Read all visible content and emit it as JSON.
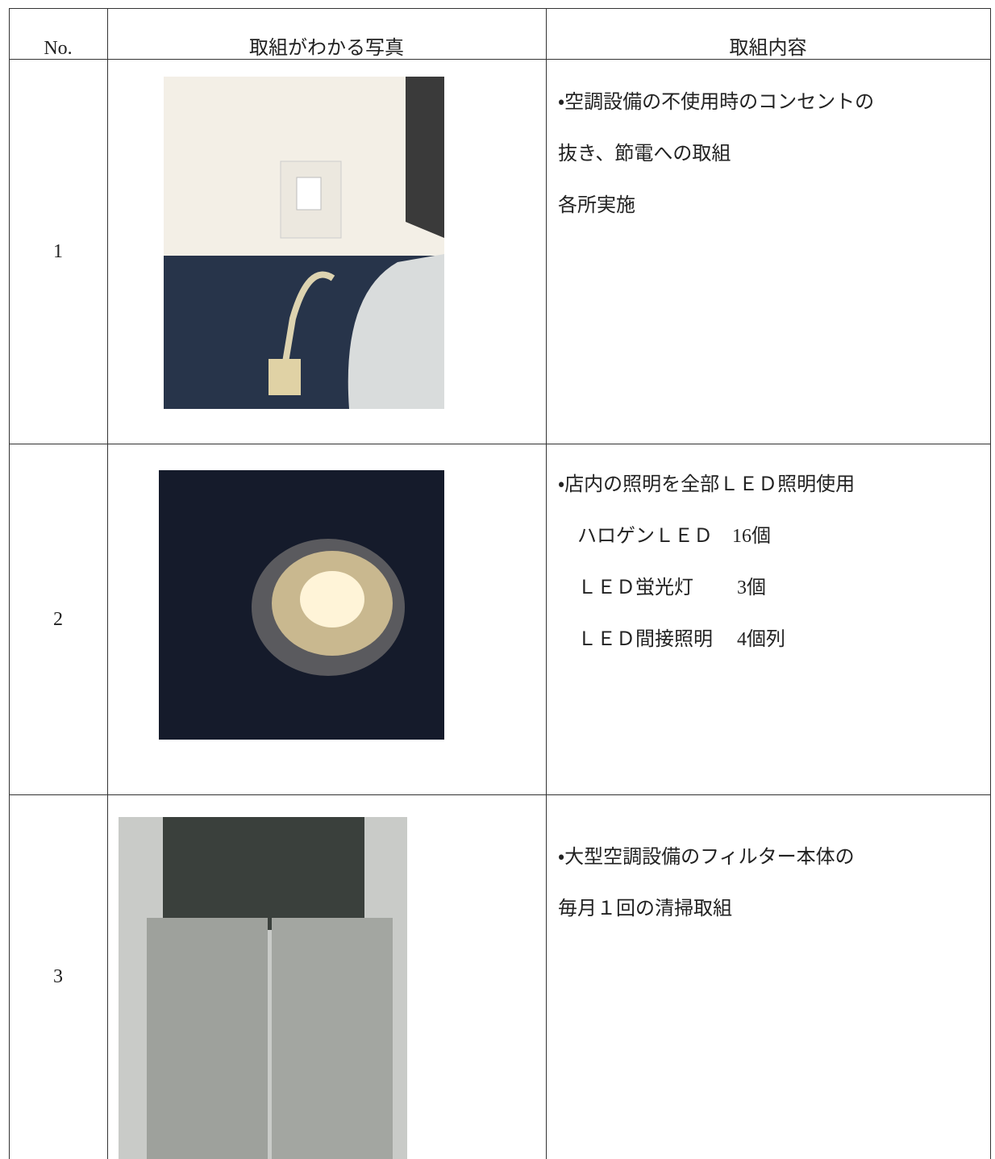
{
  "table": {
    "header": [
      "No.",
      "取組がわかる写真",
      "取組内容"
    ],
    "rows": [
      {
        "no": "1",
        "content": [
          "・空調設備の不使用時のコンセントの",
          "抜き、節電への取組",
          "各所実施"
        ]
      },
      {
        "no": "2",
        "content": [
          "・店内の照明を全部ＬＥＤ照明使用",
          "　ハロゲンＬＥＤ　16個",
          "　ＬＥＤ蛍光灯　　 3個",
          "　ＬＥＤ間接照明　 4個列"
        ]
      },
      {
        "no": "3",
        "content": [
          "・大型空調設備のフィルター本体の",
          "毎月１回の清掃取組"
        ]
      }
    ]
  }
}
